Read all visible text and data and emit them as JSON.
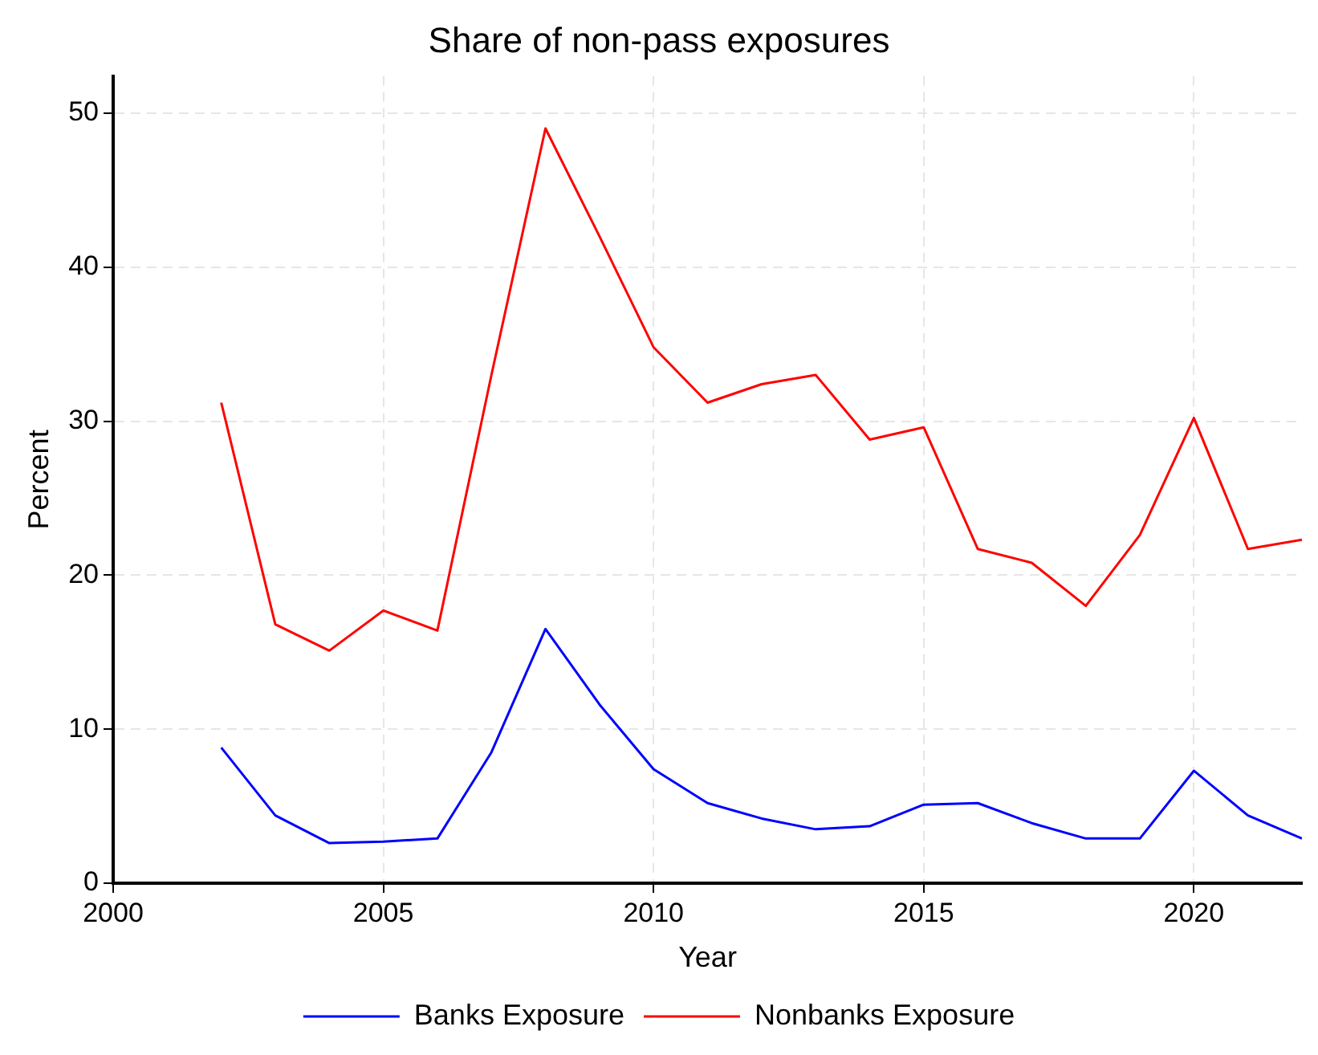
{
  "chart_data": {
    "type": "line",
    "title": "Share of non-pass exposures",
    "xlabel": "Year",
    "ylabel": "Percent",
    "x": [
      2002,
      2003,
      2004,
      2005,
      2006,
      2007,
      2008,
      2009,
      2010,
      2011,
      2012,
      2013,
      2014,
      2015,
      2016,
      2017,
      2018,
      2019,
      2020,
      2021,
      2022
    ],
    "series": [
      {
        "name": "Banks Exposure",
        "color": "#0000ff",
        "values": [
          8.8,
          4.4,
          2.6,
          2.7,
          2.9,
          8.5,
          16.5,
          11.6,
          7.4,
          5.2,
          4.2,
          3.5,
          3.7,
          5.1,
          5.2,
          3.9,
          2.9,
          2.9,
          7.3,
          4.4,
          2.9
        ]
      },
      {
        "name": "Nonbanks Exposure",
        "color": "#ff0000",
        "values": [
          31.2,
          16.8,
          15.1,
          17.7,
          16.4,
          33,
          49,
          42,
          34.8,
          31.2,
          32.4,
          33,
          28.8,
          29.6,
          21.7,
          20.8,
          18,
          22.6,
          30.2,
          21.7,
          22.3
        ]
      }
    ],
    "xlim": [
      2000,
      2022
    ],
    "xticks": [
      2000,
      2005,
      2010,
      2015,
      2020
    ],
    "ylim": [
      0,
      52.4
    ],
    "yticks": [
      0,
      10,
      20,
      30,
      40,
      50
    ],
    "grid": true,
    "legend": "bottom",
    "marker": "none",
    "line_style": "solid"
  }
}
